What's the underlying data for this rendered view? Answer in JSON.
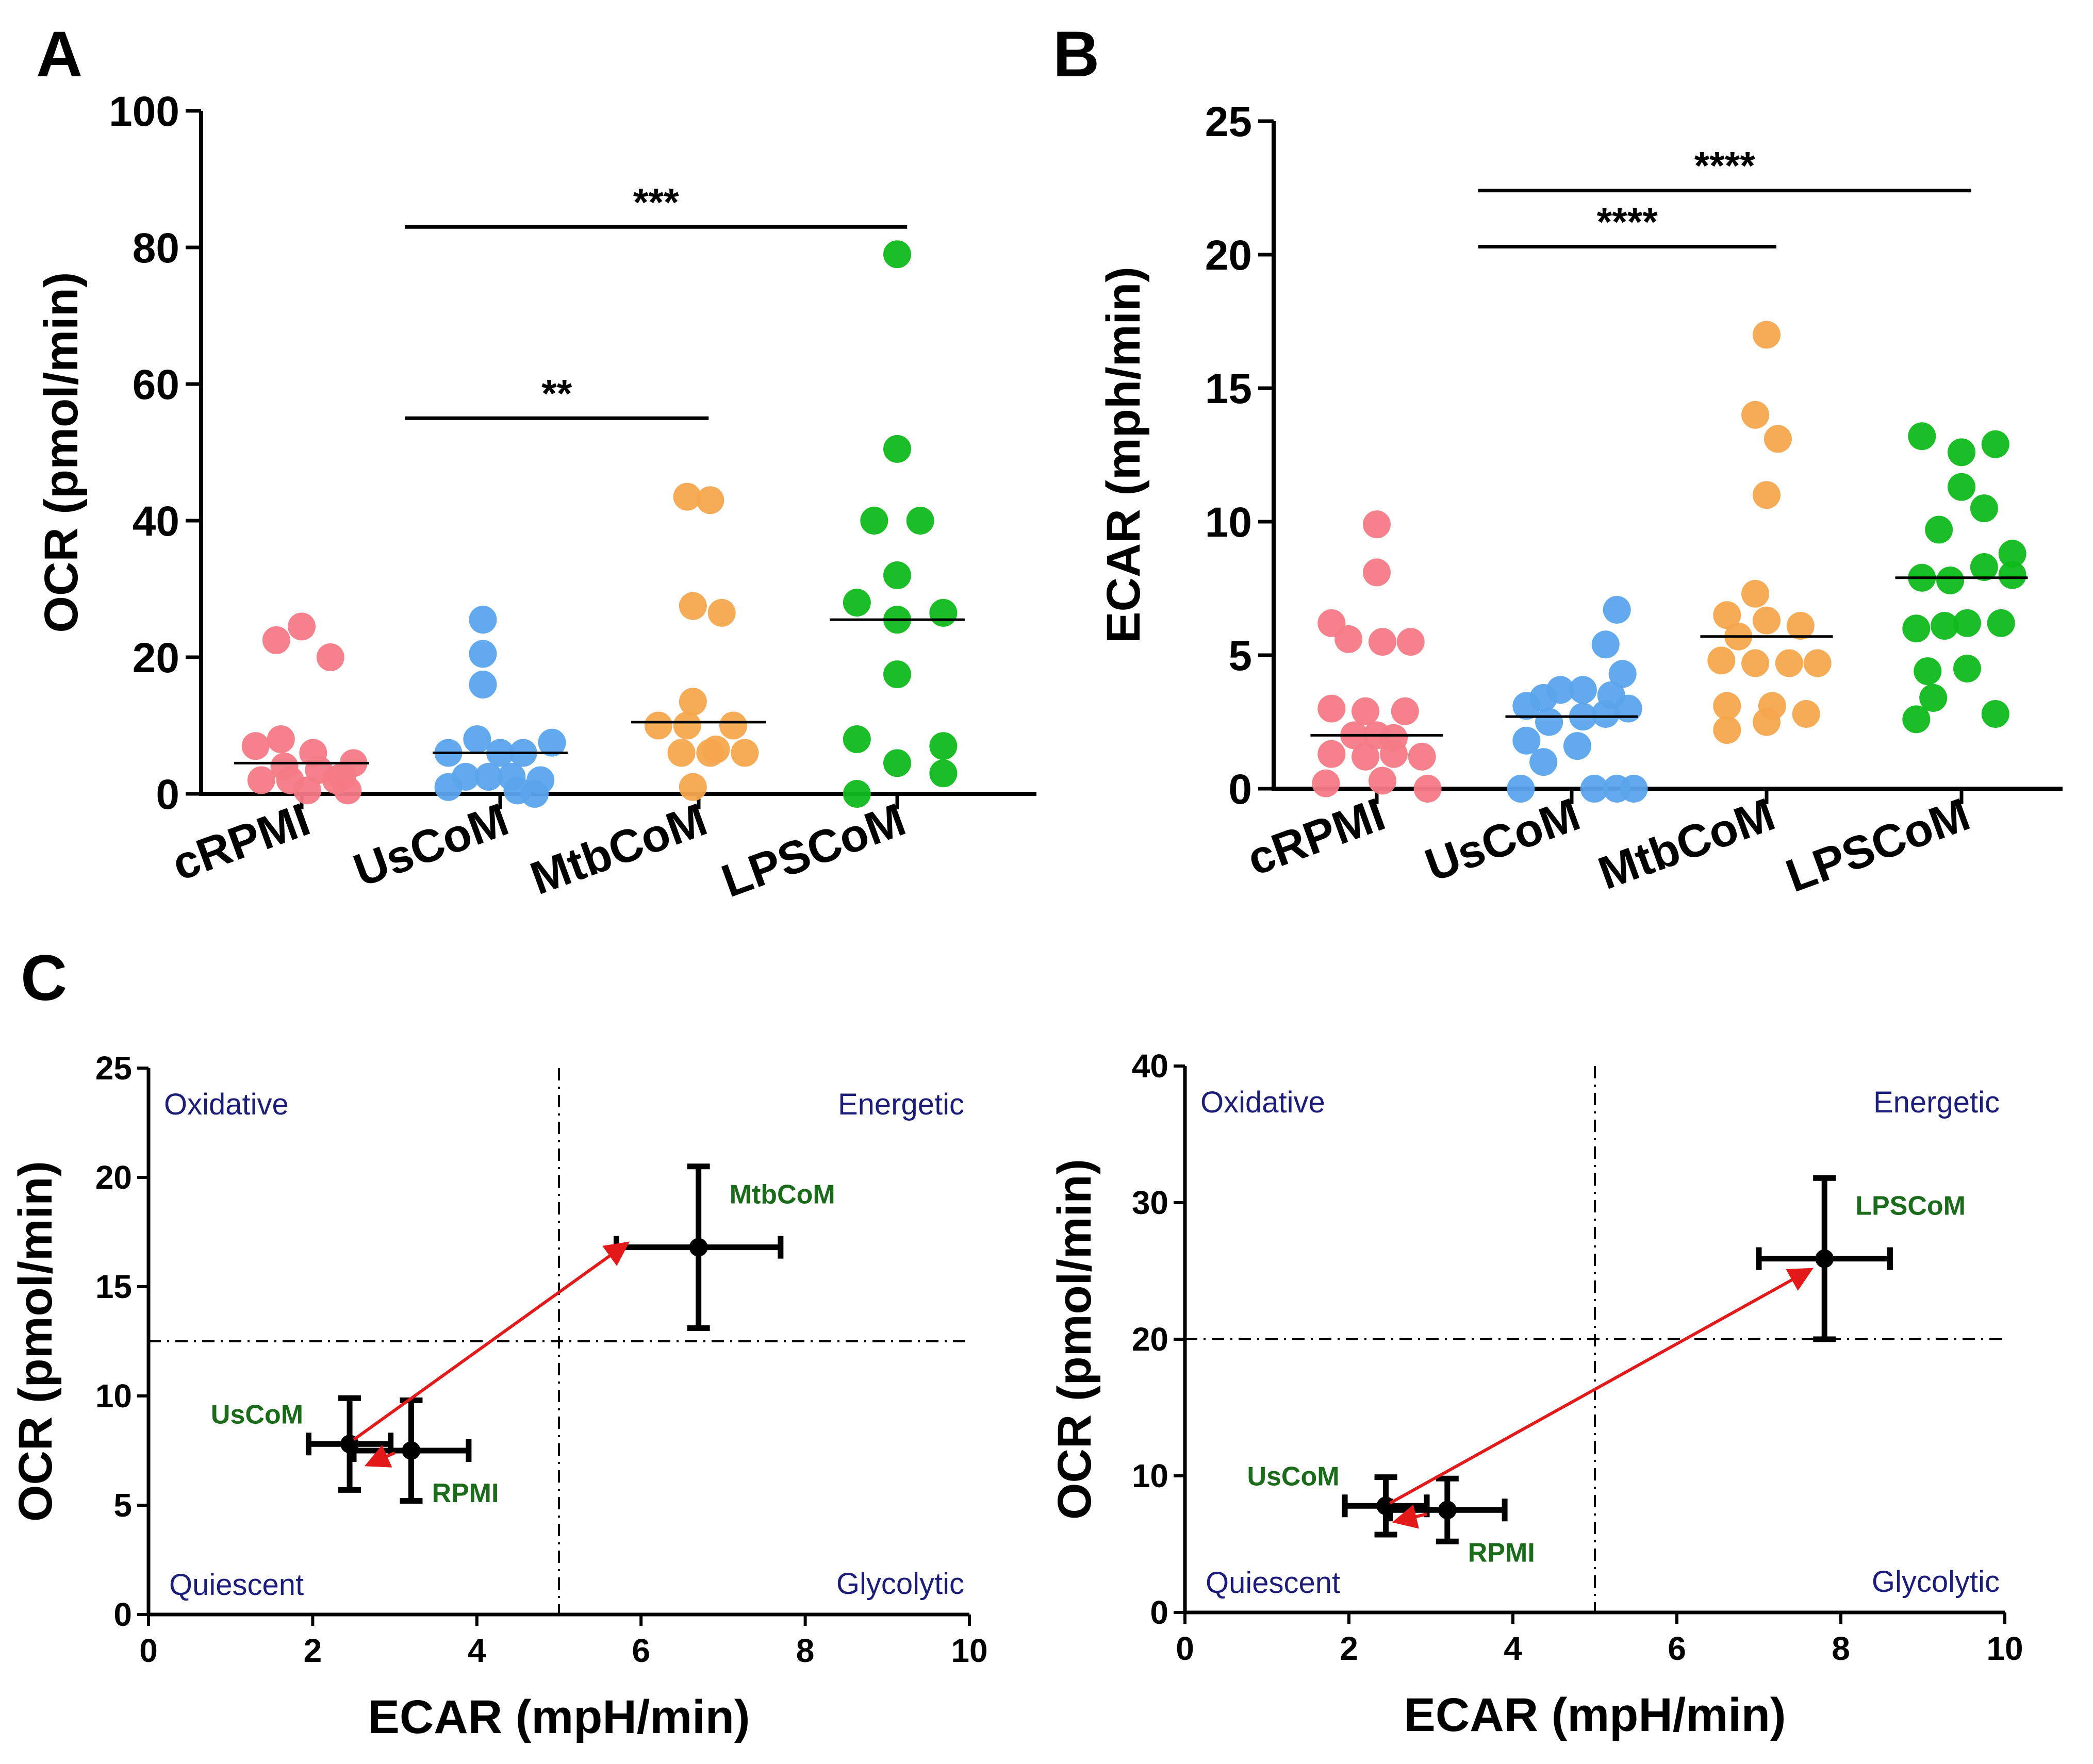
{
  "panel_labels": {
    "a": "A",
    "b": "B",
    "c": "C"
  },
  "colors": {
    "cRPMI": "#f47a86",
    "UsCoM": "#5aa4ec",
    "MtbCoM": "#f6a64e",
    "LPSCoM": "#0fbb1a",
    "arrow": "#e41a1a",
    "quadrant_text": "#1c1c7a",
    "point_label": "#1a6b1a"
  },
  "chart_data": [
    {
      "id": "A",
      "type": "scatter",
      "ylabel": "OCR (pmol/min)",
      "ylim": [
        0,
        100
      ],
      "yticks": [
        "0",
        "20",
        "40",
        "60",
        "80",
        "100"
      ],
      "categories": [
        "cRPMI",
        "UsCoM",
        "MtbCoM",
        "LPSCoM"
      ],
      "series": [
        {
          "name": "cRPMI",
          "median": 4.5,
          "points": [
            [
              -0.4,
              7
            ],
            [
              -0.18,
              8
            ],
            [
              0.1,
              6
            ],
            [
              -0.15,
              4
            ],
            [
              0.15,
              3.5
            ],
            [
              -0.35,
              2
            ],
            [
              -0.1,
              2
            ],
            [
              0.3,
              2
            ],
            [
              0.45,
              4.5
            ],
            [
              0.05,
              0.5
            ],
            [
              0.4,
              0.5
            ],
            [
              -0.22,
              22.5
            ],
            [
              0.0,
              24.5
            ],
            [
              0.25,
              20
            ],
            [
              0.35,
              2.5
            ]
          ]
        },
        {
          "name": "UsCoM",
          "median": 6,
          "points": [
            [
              -0.15,
              25.5
            ],
            [
              -0.15,
              20.5
            ],
            [
              -0.15,
              16
            ],
            [
              -0.2,
              8
            ],
            [
              0.0,
              6
            ],
            [
              0.2,
              6
            ],
            [
              0.45,
              7.5
            ],
            [
              -0.45,
              6
            ],
            [
              -0.45,
              1
            ],
            [
              -0.1,
              2.5
            ],
            [
              0.1,
              2.5
            ],
            [
              0.35,
              2
            ],
            [
              0.3,
              0
            ],
            [
              -0.3,
              2.5
            ],
            [
              0.15,
              0.5
            ]
          ]
        },
        {
          "name": "MtbCoM",
          "median": 10.5,
          "points": [
            [
              -0.1,
              43.5
            ],
            [
              0.1,
              43
            ],
            [
              -0.05,
              27.5
            ],
            [
              0.2,
              26.5
            ],
            [
              -0.05,
              13.5
            ],
            [
              -0.35,
              10
            ],
            [
              -0.1,
              10
            ],
            [
              0.3,
              10
            ],
            [
              -0.15,
              6
            ],
            [
              0.1,
              6
            ],
            [
              0.4,
              6
            ],
            [
              -0.05,
              1
            ],
            [
              0.15,
              6.5
            ]
          ]
        },
        {
          "name": "LPSCoM",
          "median": 25.5,
          "points": [
            [
              0.0,
              79
            ],
            [
              0.0,
              50.5
            ],
            [
              -0.2,
              40
            ],
            [
              0.2,
              40
            ],
            [
              0.0,
              32
            ],
            [
              -0.35,
              28
            ],
            [
              0.0,
              25.5
            ],
            [
              0.4,
              26.5
            ],
            [
              0.0,
              17.5
            ],
            [
              -0.35,
              8
            ],
            [
              0.4,
              7
            ],
            [
              0.0,
              4.5
            ],
            [
              0.4,
              3
            ],
            [
              -0.35,
              0
            ]
          ]
        }
      ],
      "comparisons": [
        {
          "from": "UsCoM",
          "to": "MtbCoM",
          "label": "**",
          "y": 55
        },
        {
          "from": "UsCoM",
          "to": "LPSCoM",
          "label": "***",
          "y": 83
        }
      ]
    },
    {
      "id": "B",
      "type": "scatter",
      "ylabel": "ECAR (mph/min)",
      "ylim": [
        0,
        25
      ],
      "yticks": [
        "0",
        "5",
        "10",
        "15",
        "20",
        "25"
      ],
      "categories": [
        "cRPMI",
        "UsCoM",
        "MtbCoM",
        "LPSCoM"
      ],
      "series": [
        {
          "name": "cRPMI",
          "median": 2,
          "points": [
            [
              0.0,
              9.9
            ],
            [
              0.0,
              8.1
            ],
            [
              -0.4,
              6.2
            ],
            [
              -0.25,
              5.6
            ],
            [
              0.05,
              5.5
            ],
            [
              0.3,
              5.5
            ],
            [
              -0.4,
              3
            ],
            [
              -0.1,
              2.9
            ],
            [
              0.0,
              2
            ],
            [
              0.25,
              2.9
            ],
            [
              -0.2,
              2
            ],
            [
              0.15,
              1.9
            ],
            [
              0.4,
              1.2
            ],
            [
              -0.4,
              1.3
            ],
            [
              -0.1,
              1.2
            ],
            [
              0.15,
              1.3
            ],
            [
              -0.45,
              0.2
            ],
            [
              0.05,
              0.3
            ],
            [
              0.45,
              0
            ]
          ]
        },
        {
          "name": "UsCoM",
          "median": 2.7,
          "points": [
            [
              0.4,
              6.7
            ],
            [
              0.3,
              5.4
            ],
            [
              0.45,
              4.3
            ],
            [
              -0.4,
              3.1
            ],
            [
              -0.25,
              3.4
            ],
            [
              -0.1,
              3.7
            ],
            [
              0.1,
              3.7
            ],
            [
              0.35,
              3.5
            ],
            [
              0.5,
              3
            ],
            [
              -0.4,
              1.8
            ],
            [
              -0.2,
              2.5
            ],
            [
              0.1,
              2.7
            ],
            [
              0.3,
              2.8
            ],
            [
              -0.25,
              1
            ],
            [
              0.05,
              1.6
            ],
            [
              -0.45,
              0
            ],
            [
              0.2,
              0
            ],
            [
              0.4,
              0
            ],
            [
              0.55,
              0
            ]
          ]
        },
        {
          "name": "MtbCoM",
          "median": 5.7,
          "points": [
            [
              0.0,
              17
            ],
            [
              -0.1,
              14
            ],
            [
              0.1,
              13.1
            ],
            [
              0.0,
              11
            ],
            [
              -0.1,
              7.3
            ],
            [
              -0.35,
              6.5
            ],
            [
              0.0,
              6.3
            ],
            [
              0.3,
              6.1
            ],
            [
              -0.25,
              5.7
            ],
            [
              -0.4,
              4.8
            ],
            [
              -0.1,
              4.7
            ],
            [
              0.2,
              4.7
            ],
            [
              0.45,
              4.7
            ],
            [
              -0.35,
              3.1
            ],
            [
              0.05,
              3.1
            ],
            [
              -0.35,
              2.2
            ],
            [
              0.0,
              2.5
            ],
            [
              0.35,
              2.8
            ]
          ]
        },
        {
          "name": "LPSCoM",
          "median": 7.9,
          "points": [
            [
              -0.35,
              13.2
            ],
            [
              0.0,
              12.6
            ],
            [
              0.3,
              12.9
            ],
            [
              0.0,
              11.3
            ],
            [
              -0.2,
              9.7
            ],
            [
              0.2,
              10.5
            ],
            [
              0.45,
              8.8
            ],
            [
              -0.35,
              7.9
            ],
            [
              -0.1,
              7.8
            ],
            [
              0.2,
              8.3
            ],
            [
              0.45,
              8
            ],
            [
              -0.4,
              6
            ],
            [
              -0.15,
              6.1
            ],
            [
              0.05,
              6.2
            ],
            [
              0.35,
              6.2
            ],
            [
              -0.3,
              4.4
            ],
            [
              0.05,
              4.5
            ],
            [
              -0.25,
              3.4
            ],
            [
              0.3,
              2.8
            ],
            [
              -0.4,
              2.6
            ]
          ]
        }
      ],
      "comparisons": [
        {
          "from": "UsCoM",
          "to": "MtbCoM",
          "label": "****",
          "y": 20.3
        },
        {
          "from": "UsCoM",
          "to": "LPSCoM",
          "label": "****",
          "y": 22.4
        }
      ]
    },
    {
      "id": "C-left",
      "type": "scatter",
      "xlabel": "ECAR (mpH/min)",
      "ylabel": "OCR (pmol/min)",
      "xlim": [
        0,
        10
      ],
      "ylim": [
        0,
        25
      ],
      "xticks": [
        "0",
        "2",
        "4",
        "6",
        "8",
        "10"
      ],
      "yticks": [
        "0",
        "5",
        "10",
        "15",
        "20",
        "25"
      ],
      "threshold_x": 5,
      "threshold_y": 12.5,
      "quadrants": {
        "top_left": "Oxidative",
        "top_right": "Energetic",
        "bottom_left": "Quiescent",
        "bottom_right": "Glycolytic"
      },
      "points": [
        {
          "name": "UsCoM",
          "x": 2.45,
          "y": 7.8,
          "xerr": 0.5,
          "yerr": 2.1
        },
        {
          "name": "RPMI",
          "x": 3.2,
          "y": 7.5,
          "xerr": 0.7,
          "yerr": 2.3
        },
        {
          "name": "MtbCoM",
          "x": 6.7,
          "y": 16.8,
          "xerr": 1.0,
          "yerr": 3.7
        }
      ],
      "arrows": [
        {
          "from": [
            3.0,
            7.4
          ],
          "to": [
            2.7,
            6.9
          ]
        },
        {
          "from": [
            2.5,
            8.0
          ],
          "to": [
            5.8,
            16.9
          ]
        }
      ]
    },
    {
      "id": "C-right",
      "type": "scatter",
      "xlabel": "ECAR (mpH/min)",
      "ylabel": "OCR (pmol/min)",
      "xlim": [
        0,
        10
      ],
      "ylim": [
        0,
        40
      ],
      "xticks": [
        "0",
        "2",
        "4",
        "6",
        "8",
        "10"
      ],
      "yticks": [
        "0",
        "10",
        "20",
        "30",
        "40"
      ],
      "threshold_x": 5,
      "threshold_y": 20,
      "quadrants": {
        "top_left": "Oxidative",
        "top_right": "Energetic",
        "bottom_left": "Quiescent",
        "bottom_right": "Glycolytic"
      },
      "points": [
        {
          "name": "UsCoM",
          "x": 2.45,
          "y": 7.8,
          "xerr": 0.5,
          "yerr": 2.1
        },
        {
          "name": "RPMI",
          "x": 3.2,
          "y": 7.5,
          "xerr": 0.7,
          "yerr": 2.3
        },
        {
          "name": "LPSCoM",
          "x": 7.8,
          "y": 25.9,
          "xerr": 0.8,
          "yerr": 5.9
        }
      ],
      "arrows": [
        {
          "from": [
            2.95,
            7.2
          ],
          "to": [
            2.6,
            6.7
          ]
        },
        {
          "from": [
            2.5,
            8.0
          ],
          "to": [
            7.6,
            25.0
          ]
        }
      ]
    }
  ]
}
